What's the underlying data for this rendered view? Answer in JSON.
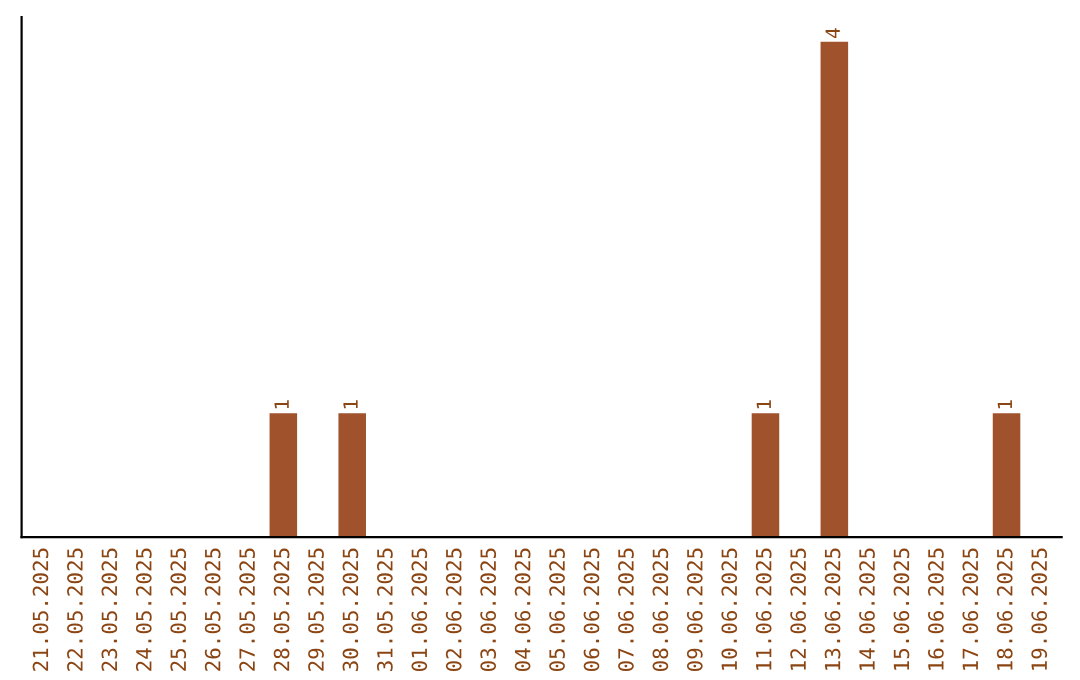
{
  "chart_data": {
    "type": "bar",
    "categories": [
      "21.05.2025",
      "22.05.2025",
      "23.05.2025",
      "24.05.2025",
      "25.05.2025",
      "26.05.2025",
      "27.05.2025",
      "28.05.2025",
      "29.05.2025",
      "30.05.2025",
      "31.05.2025",
      "01.06.2025",
      "02.06.2025",
      "03.06.2025",
      "04.06.2025",
      "05.06.2025",
      "06.06.2025",
      "07.06.2025",
      "08.06.2025",
      "09.06.2025",
      "10.06.2025",
      "11.06.2025",
      "12.06.2025",
      "13.06.2025",
      "14.06.2025",
      "15.06.2025",
      "16.06.2025",
      "17.06.2025",
      "18.06.2025",
      "19.06.2025"
    ],
    "values": [
      0,
      0,
      0,
      0,
      0,
      0,
      0,
      1,
      0,
      1,
      0,
      0,
      0,
      0,
      0,
      0,
      0,
      0,
      0,
      0,
      0,
      1,
      0,
      4,
      0,
      0,
      0,
      0,
      1,
      0
    ],
    "value_labels": [
      null,
      null,
      null,
      null,
      null,
      null,
      null,
      "1",
      null,
      "1",
      null,
      null,
      null,
      null,
      null,
      null,
      null,
      null,
      null,
      null,
      null,
      "1",
      null,
      "4",
      null,
      null,
      null,
      null,
      "1",
      null
    ],
    "color": "#a0522d",
    "tick_labels": "x",
    "grid": false,
    "legend": false
  }
}
